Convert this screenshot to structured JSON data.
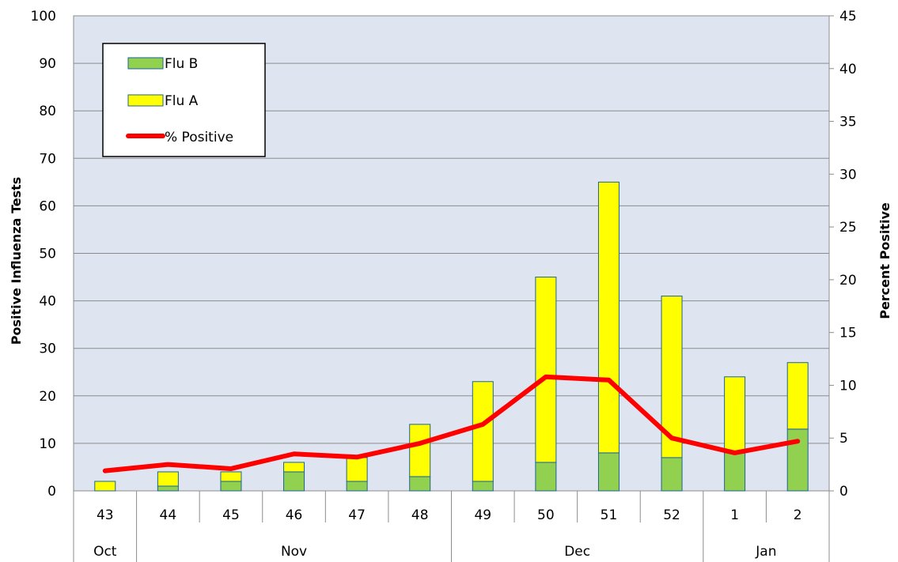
{
  "chart_data": {
    "type": "bar",
    "stacked": true,
    "categories": [
      "43",
      "44",
      "45",
      "46",
      "47",
      "48",
      "49",
      "50",
      "51",
      "52",
      "1",
      "2"
    ],
    "month_groups": [
      {
        "label": "Oct",
        "span": 1
      },
      {
        "label": "Nov",
        "span": 5
      },
      {
        "label": "Dec",
        "span": 4
      },
      {
        "label": "Jan",
        "span": 2
      }
    ],
    "series": [
      {
        "name": "Flu B",
        "kind": "bar",
        "axis": "left",
        "color": "#92d050",
        "values": [
          0,
          1,
          2,
          4,
          2,
          3,
          2,
          6,
          8,
          7,
          8,
          13
        ]
      },
      {
        "name": "Flu A",
        "kind": "bar",
        "axis": "left",
        "color": "#ffff00",
        "values": [
          2,
          3,
          2,
          2,
          5,
          11,
          21,
          39,
          57,
          34,
          16,
          14
        ]
      },
      {
        "name": "% Positive",
        "kind": "line",
        "axis": "right",
        "color": "#ff0000",
        "values": [
          1.9,
          2.5,
          2.1,
          3.5,
          3.2,
          4.5,
          6.3,
          10.8,
          10.5,
          5.0,
          3.6,
          4.7
        ]
      }
    ],
    "ylabel": "Positive Influenza Tests",
    "y2label": "Percent Positive",
    "ylim": [
      0,
      100
    ],
    "y2lim": [
      0,
      45
    ],
    "yticks": [
      "0",
      "10",
      "20",
      "30",
      "40",
      "50",
      "60",
      "70",
      "80",
      "90",
      "100"
    ],
    "y2ticks": [
      "0",
      "5",
      "10",
      "15",
      "20",
      "25",
      "30",
      "35",
      "40",
      "45"
    ],
    "grid": true,
    "legend_position": "top-left",
    "plot_background": "#dee5f0",
    "bar_outline_color": "#1f6391"
  }
}
